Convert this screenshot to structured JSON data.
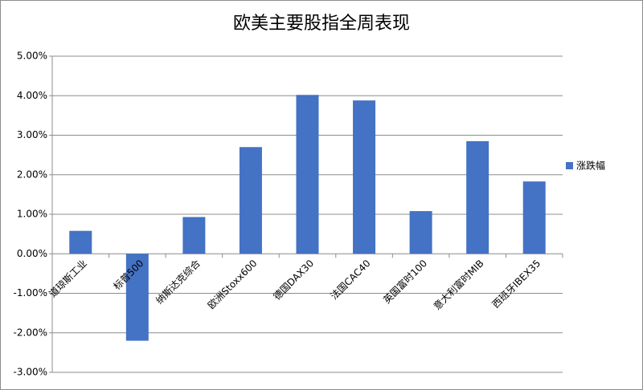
{
  "chart_data": {
    "type": "bar",
    "title": "欧美主要股指全周表现",
    "categories": [
      "道琼斯工业",
      "标普500",
      "纳斯达克综合",
      "欧洲Stoxx600",
      "德国DAX30",
      "法国CAC40",
      "英国富时100",
      "意大利富时MIB",
      "西班牙IBEX35"
    ],
    "series": [
      {
        "name": "涨跌幅",
        "color": "#4472c4",
        "values": [
          0.58,
          -2.2,
          0.93,
          2.7,
          4.02,
          3.88,
          1.08,
          2.85,
          1.83
        ]
      }
    ],
    "ylim": [
      -3,
      5
    ],
    "yticks": [
      {
        "value": -3,
        "label": "-3.00%"
      },
      {
        "value": -2,
        "label": "-2.00%"
      },
      {
        "value": -1,
        "label": "-1.00%"
      },
      {
        "value": 0,
        "label": "0.00%"
      },
      {
        "value": 1,
        "label": "1.00%"
      },
      {
        "value": 2,
        "label": "2.00%"
      },
      {
        "value": 3,
        "label": "3.00%"
      },
      {
        "value": 4,
        "label": "4.00%"
      },
      {
        "value": 5,
        "label": "5.00%"
      }
    ],
    "grid": true,
    "legend": "right"
  }
}
